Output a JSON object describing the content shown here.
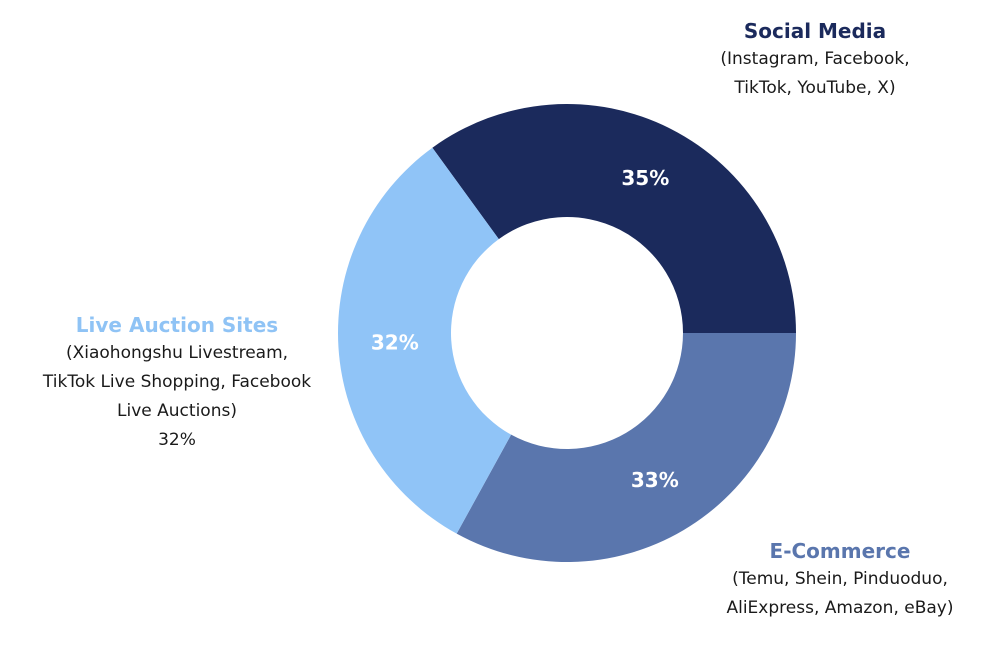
{
  "chart_data": {
    "type": "pie",
    "variant": "donut",
    "series": [
      {
        "name": "Social Media",
        "description": "(Instagram, Facebook, TikTok, YouTube, X)",
        "value": 35,
        "label": "35%",
        "color": "#1b2a5c"
      },
      {
        "name": "E-Commerce",
        "description": "(Temu, Shein, Pinduoduo, AliExpress, Amazon, eBay)",
        "value": 33,
        "label": "33%",
        "color": "#5a76ad"
      },
      {
        "name": "Live Auction Sites",
        "description": "(Xiaohongshu Livestream, TikTok Live Shopping, Facebook Live Auctions)",
        "value": 32,
        "label": "32%",
        "color": "#90c4f7"
      }
    ]
  },
  "labels": {
    "social": {
      "title": "Social Media",
      "line1": "(Instagram, Facebook,",
      "line2": "TikTok, YouTube, X)"
    },
    "live": {
      "title": "Live Auction Sites",
      "line1": "(Xiaohongshu Livestream,",
      "line2": "TikTok Live Shopping, Facebook",
      "line3": "Live Auctions)",
      "line4": "32%"
    },
    "ecom": {
      "title": "E-Commerce",
      "line1": "(Temu, Shein, Pinduoduo,",
      "line2": "AliExpress, Amazon, eBay)"
    }
  },
  "colors": {
    "social_title": "#1b2a5c",
    "live_title": "#8fc3f5",
    "ecom_title": "#5a76ad"
  }
}
